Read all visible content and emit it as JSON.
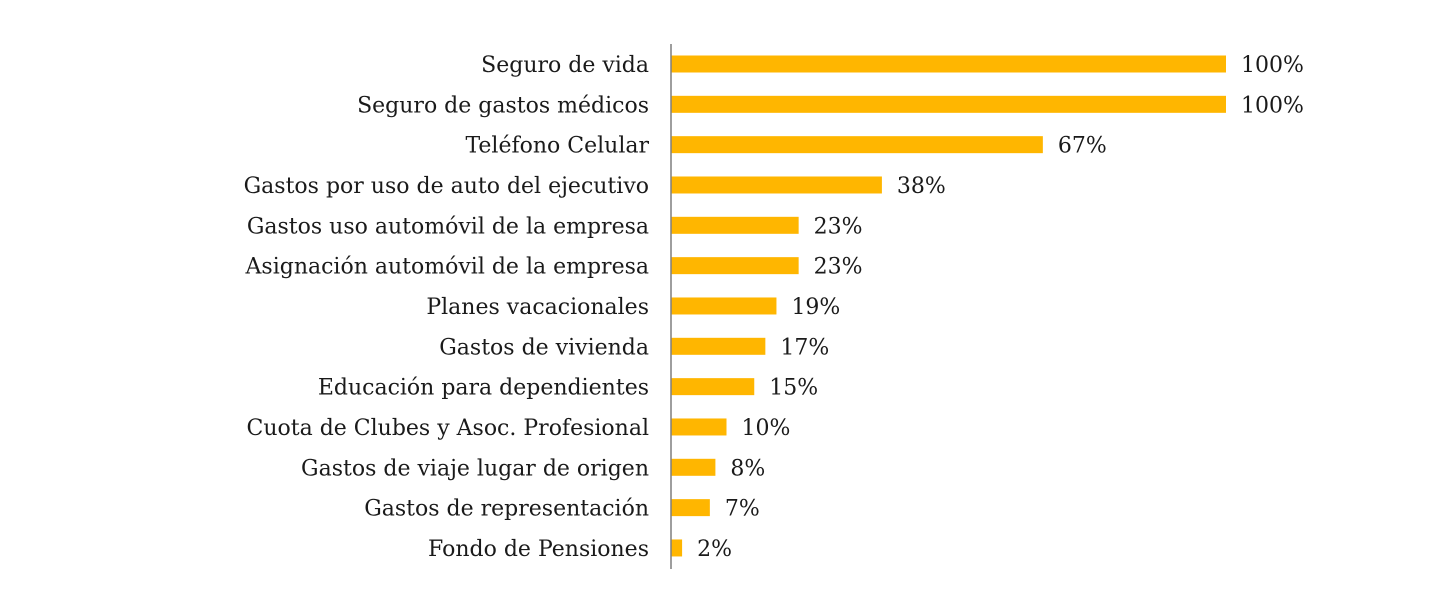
{
  "chart_data": {
    "type": "bar",
    "orientation": "horizontal",
    "categories": [
      "Seguro de vida",
      "Seguro de gastos médicos",
      "Teléfono Celular",
      "Gastos por uso de auto del ejecutivo",
      "Gastos uso automóvil de la empresa",
      "Asignación automóvil de la empresa",
      "Planes vacacionales",
      "Gastos de vivienda",
      "Educación para dependientes",
      "Cuota de Clubes y Asoc. Profesional",
      "Gastos de viaje lugar de origen",
      "Gastos de representación",
      "Fondo de Pensiones"
    ],
    "values": [
      100,
      100,
      67,
      38,
      23,
      23,
      19,
      17,
      15,
      10,
      8,
      7,
      2
    ],
    "value_labels": [
      "100%",
      "100%",
      "67%",
      "38%",
      "23%",
      "23%",
      "19%",
      "17%",
      "15%",
      "10%",
      "8%",
      "7%",
      "2%"
    ],
    "title": "",
    "xlabel": "",
    "ylabel": "",
    "xlim": [
      0,
      100
    ],
    "grid": false,
    "legend": "none",
    "bar_color": "#FFB600",
    "axis_color": "#7f7f7f"
  }
}
